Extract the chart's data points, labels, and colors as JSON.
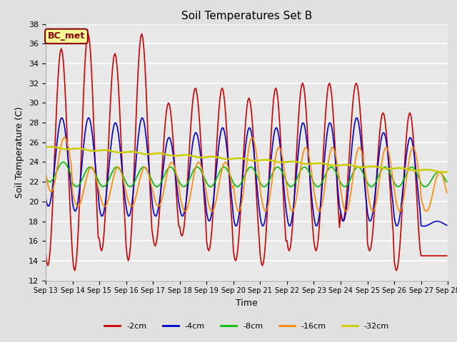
{
  "title": "Soil Temperatures Set B",
  "xlabel": "Time",
  "ylabel": "Soil Temperature (C)",
  "ylim": [
    12,
    38
  ],
  "yticks": [
    12,
    14,
    16,
    18,
    20,
    22,
    24,
    26,
    28,
    30,
    32,
    34,
    36,
    38
  ],
  "annotation": "BC_met",
  "bg_color": "#e0e0e0",
  "plot_bg_color": "#e8e8e8",
  "series_names": [
    "-2cm",
    "-4cm",
    "-8cm",
    "-16cm",
    "-32cm"
  ],
  "series_colors": [
    "#cc0000",
    "#0000cc",
    "#00bb00",
    "#ff8800",
    "#cccc00"
  ],
  "series_lw": [
    1.2,
    1.2,
    1.2,
    1.2,
    1.8
  ],
  "x_start": 13,
  "x_end": 28,
  "n_points": 360,
  "xtick_days": [
    13,
    14,
    15,
    16,
    17,
    18,
    19,
    20,
    21,
    22,
    23,
    24,
    25,
    26,
    27,
    28
  ],
  "xtick_labels": [
    "Sep 13",
    "Sep 14",
    "Sep 15",
    "Sep 16",
    "Sep 17",
    "Sep 18",
    "Sep 19",
    "Sep 20",
    "Sep 21",
    "Sep 22",
    "Sep 23",
    "Sep 24",
    "Sep 25",
    "Sep 26",
    "Sep 27",
    "Sep 28"
  ]
}
